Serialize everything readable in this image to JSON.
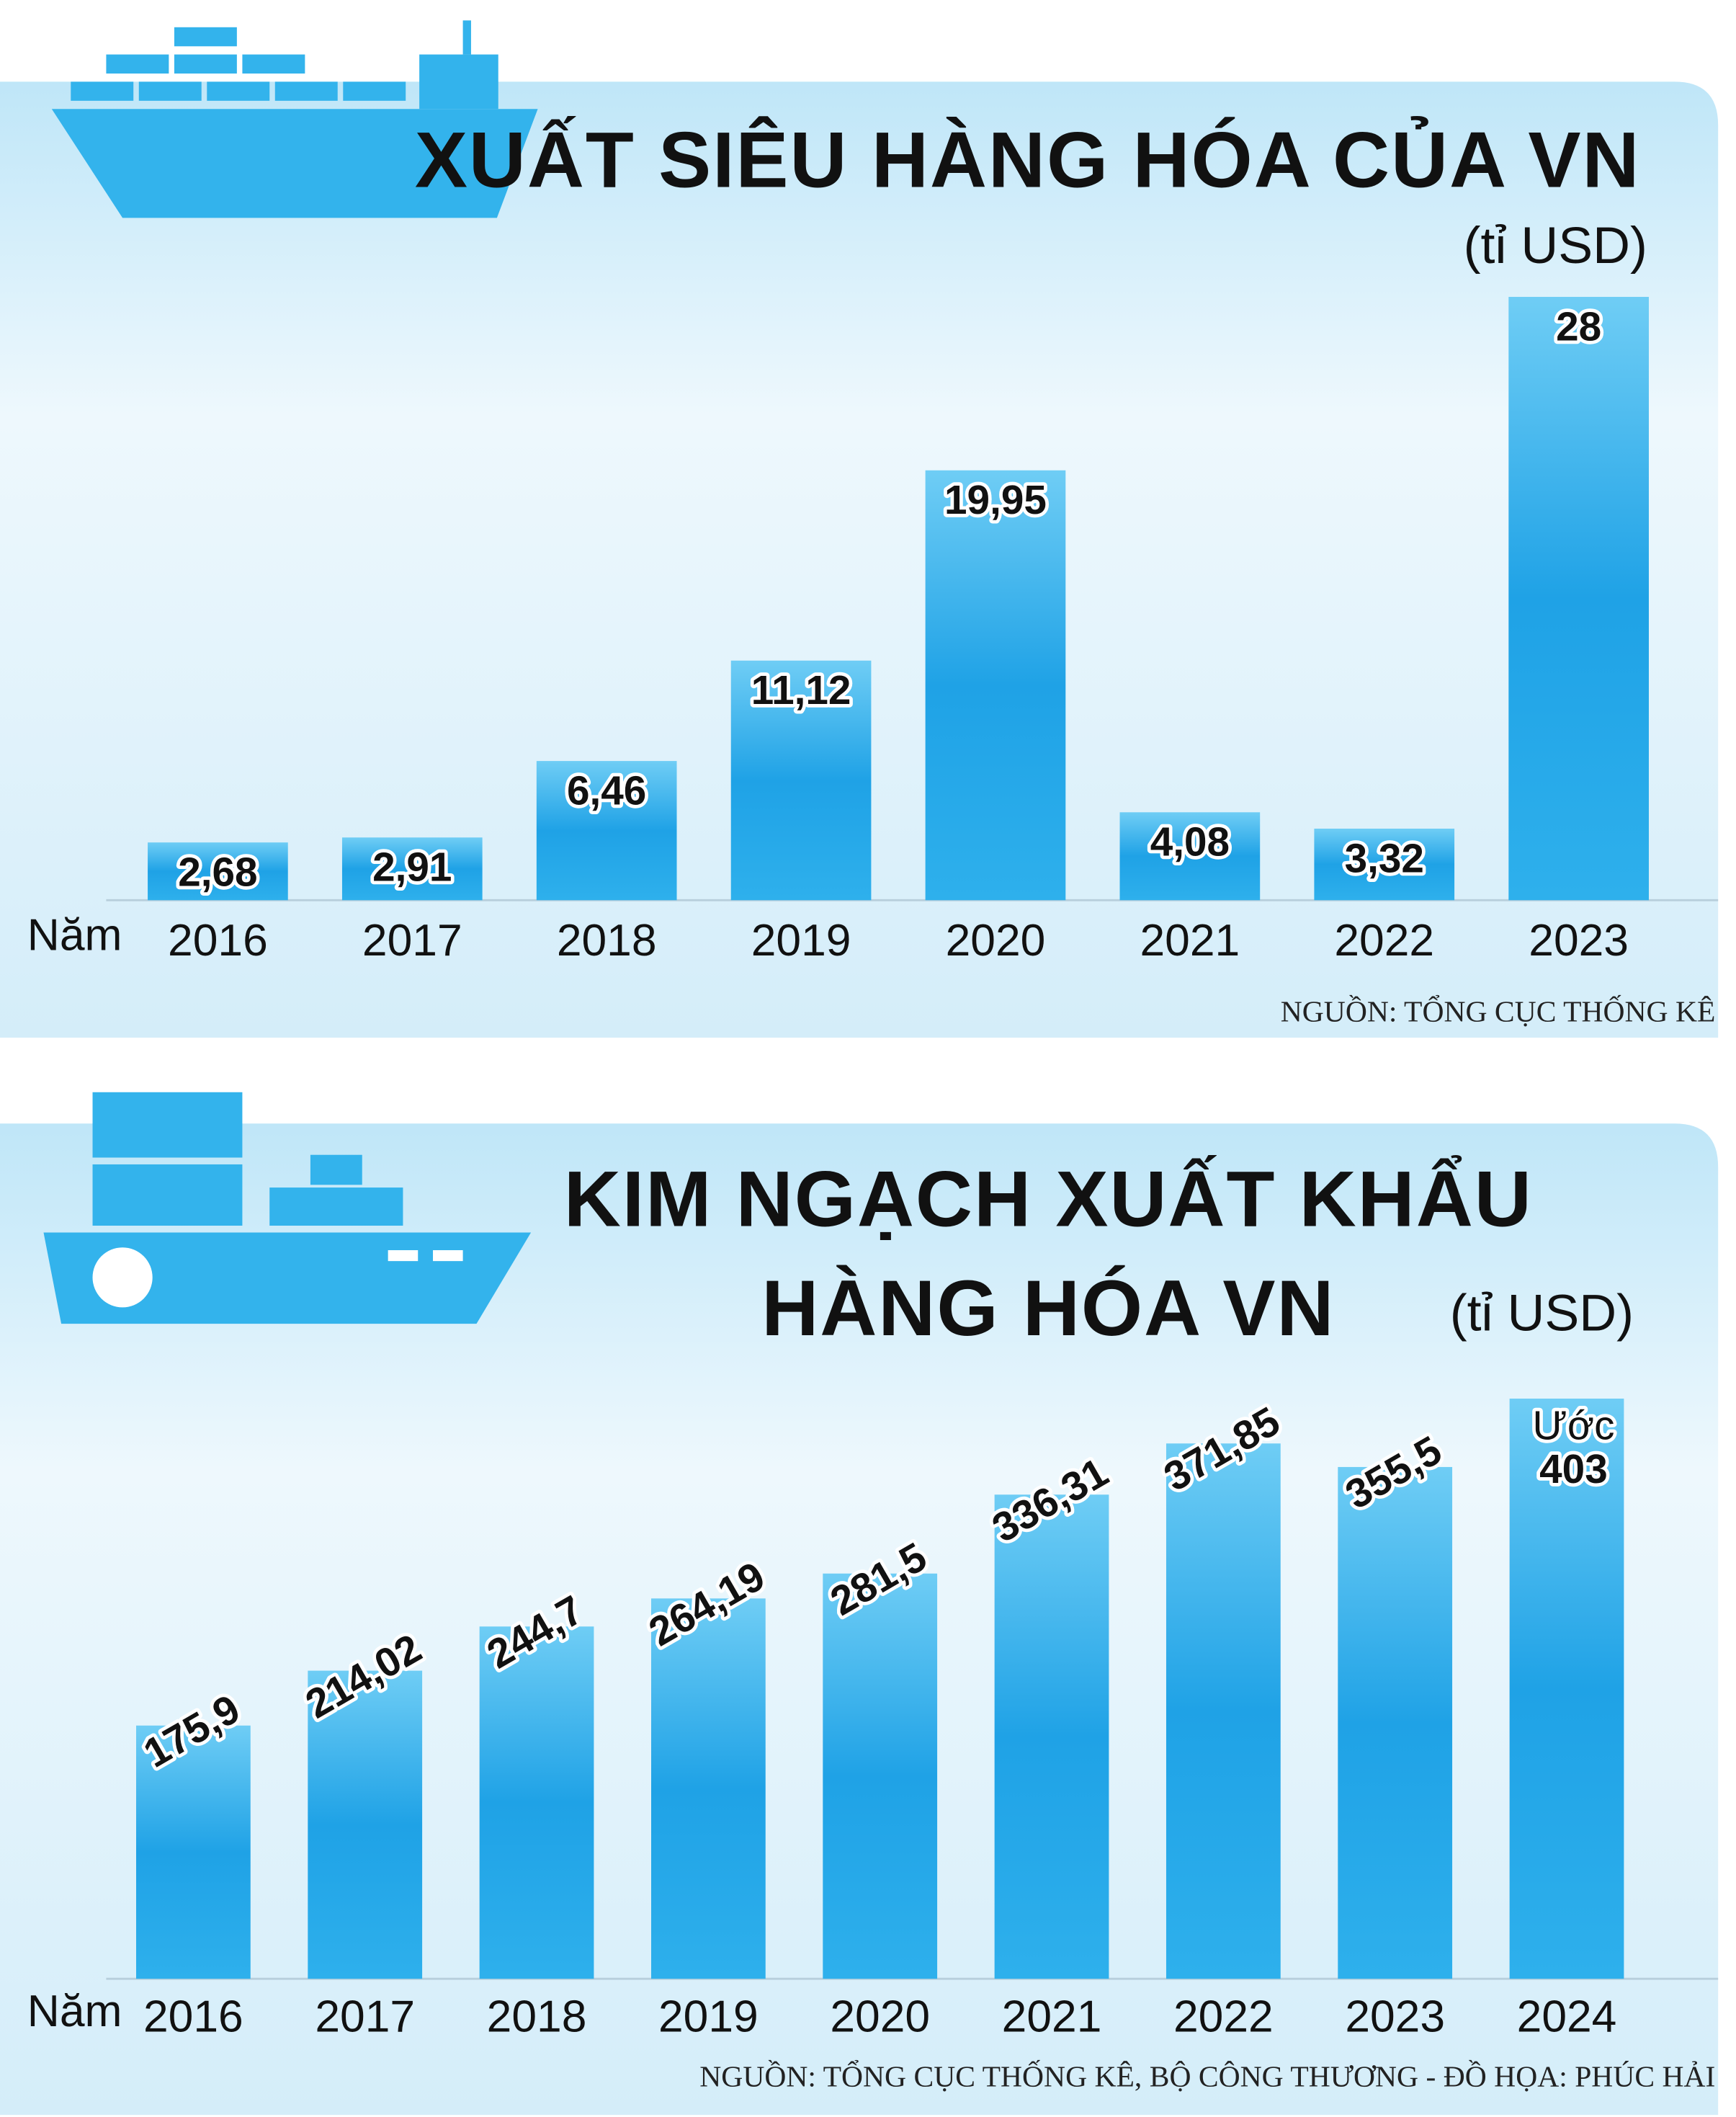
{
  "chart_data": [
    {
      "type": "bar",
      "title": "XUẤT SIÊU HÀNG HÓA CỦA VN",
      "unit": "(tỉ USD)",
      "x_label": "Năm",
      "source": "NGUỒN: TỔNG CỤC THỐNG KÊ",
      "categories": [
        "2016",
        "2017",
        "2018",
        "2019",
        "2020",
        "2021",
        "2022",
        "2023"
      ],
      "values": [
        2.68,
        2.91,
        6.46,
        11.12,
        19.95,
        4.08,
        3.32,
        28
      ],
      "value_labels": [
        "2,68",
        "2,91",
        "6,46",
        "11,12",
        "19,95",
        "4,08",
        "3,32",
        "28"
      ],
      "color": "#29a9e8",
      "ylim": [
        0,
        28
      ]
    },
    {
      "type": "bar",
      "title": [
        "KIM NGẠCH XUẤT KHẨU",
        "HÀNG HÓA VN"
      ],
      "unit": "(tỉ USD)",
      "x_label": "Năm",
      "source": "NGUỒN: TỔNG CỤC THỐNG KÊ, BỘ CÔNG THƯƠNG - ĐỒ HỌA: PHÚC HẢI",
      "categories": [
        "2016",
        "2017",
        "2018",
        "2019",
        "2020",
        "2021",
        "2022",
        "2023",
        "2024"
      ],
      "values": [
        175.9,
        214.02,
        244.7,
        264.19,
        281.5,
        336.31,
        371.85,
        355.5,
        403
      ],
      "value_labels": [
        "175,9",
        "214,02",
        "244,7",
        "264,19",
        "281,5",
        "336,31",
        "371,85",
        "355,5",
        "403"
      ],
      "annotation": "Ước",
      "color": "#29a9e8",
      "ylim": [
        0,
        403
      ]
    }
  ]
}
